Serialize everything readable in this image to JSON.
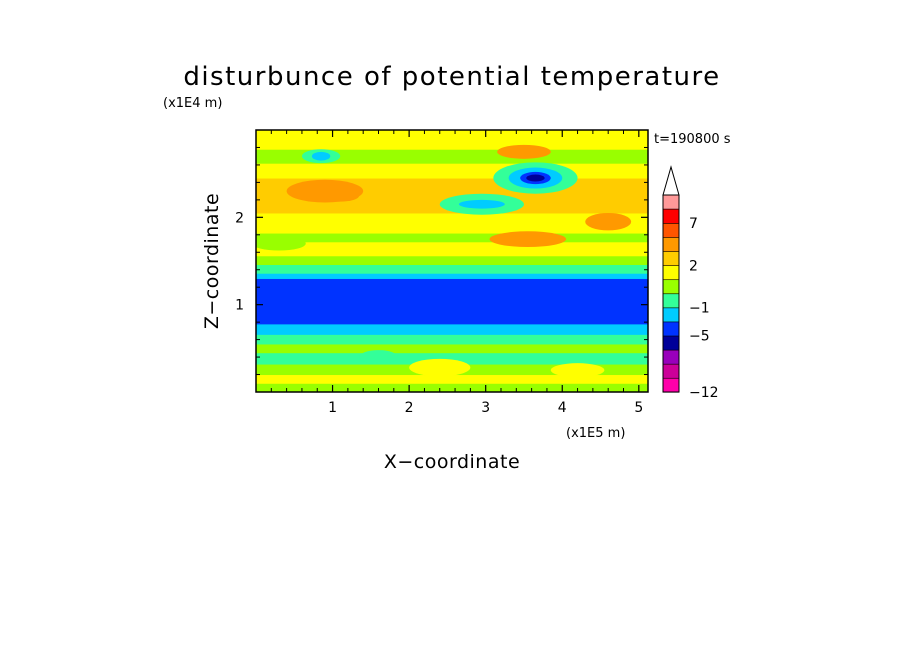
{
  "chart_data": {
    "type": "heatmap",
    "title": "disturbunce of potential temperature",
    "xlabel": "X−coordinate",
    "ylabel": "Z−coordinate",
    "x_scale_label": "(x1E5 m)",
    "y_scale_label": "(x1E4 m)",
    "time_label": "t=190800 s",
    "xlim": [
      0,
      5.12
    ],
    "ylim": [
      0,
      3.0
    ],
    "x_ticks": [
      1,
      2,
      3,
      4,
      5
    ],
    "y_ticks": [
      1,
      2
    ],
    "x_tick_labels": [
      "1",
      "2",
      "3",
      "4",
      "5"
    ],
    "y_tick_labels": [
      "1",
      "2"
    ],
    "colorbar": {
      "levels": [
        -12,
        -11,
        -9,
        -7,
        -5,
        -3,
        -1,
        0,
        1,
        2,
        3,
        5,
        7,
        9,
        11
      ],
      "colors": [
        "#ff00aa",
        "#cc0099",
        "#9900bb",
        "#000099",
        "#0033ff",
        "#00ccff",
        "#33ff99",
        "#99ff00",
        "#ffff00",
        "#ffcc00",
        "#ff9900",
        "#ff5500",
        "#ff0000",
        "#ff9999"
      ],
      "tick_values": [
        -12,
        -5,
        -1,
        2,
        7
      ],
      "tick_labels": [
        "−12",
        "−5",
        "−1",
        "2",
        "7"
      ],
      "extend": "max"
    },
    "bands": [
      {
        "z0": 0.0,
        "z1": 0.1,
        "value": 0
      },
      {
        "z0": 0.1,
        "z1": 0.2,
        "value": 1
      },
      {
        "z0": 0.2,
        "z1": 0.32,
        "value": 0
      },
      {
        "z0": 0.32,
        "z1": 0.45,
        "value": -0.5
      },
      {
        "z0": 0.45,
        "z1": 0.55,
        "value": 0
      },
      {
        "z0": 0.55,
        "z1": 0.66,
        "value": -1
      },
      {
        "z0": 0.66,
        "z1": 0.78,
        "value": -2
      },
      {
        "z0": 0.78,
        "z1": 1.3,
        "value": -4
      },
      {
        "z0": 1.3,
        "z1": 1.36,
        "value": -2
      },
      {
        "z0": 1.36,
        "z1": 1.46,
        "value": -0.5
      },
      {
        "z0": 1.46,
        "z1": 1.56,
        "value": 0.5
      },
      {
        "z0": 1.56,
        "z1": 1.72,
        "value": 1
      },
      {
        "z0": 1.72,
        "z1": 1.82,
        "value": 0
      },
      {
        "z0": 1.82,
        "z1": 1.92,
        "value": 1
      },
      {
        "z0": 1.92,
        "z1": 2.05,
        "value": 1.5
      },
      {
        "z0": 2.05,
        "z1": 2.18,
        "value": 2
      },
      {
        "z0": 2.18,
        "z1": 2.45,
        "value": 2.5
      },
      {
        "z0": 2.45,
        "z1": 2.62,
        "value": 1
      },
      {
        "z0": 2.62,
        "z1": 2.78,
        "value": 0
      },
      {
        "z0": 2.78,
        "z1": 3.0,
        "value": 1
      }
    ],
    "features": [
      {
        "x": 0.9,
        "z": 2.3,
        "rx": 0.5,
        "rz": 0.13,
        "value": 3
      },
      {
        "x": 1.1,
        "z": 2.25,
        "rx": 0.25,
        "rz": 0.07,
        "value": 4
      },
      {
        "x": 3.65,
        "z": 2.45,
        "rx": 0.55,
        "rz": 0.18,
        "value": -0.5
      },
      {
        "x": 3.65,
        "z": 2.45,
        "rx": 0.35,
        "rz": 0.12,
        "value": -2
      },
      {
        "x": 3.65,
        "z": 2.45,
        "rx": 0.2,
        "rz": 0.07,
        "value": -4
      },
      {
        "x": 3.65,
        "z": 2.45,
        "rx": 0.12,
        "rz": 0.04,
        "value": -6
      },
      {
        "x": 2.95,
        "z": 2.15,
        "rx": 0.55,
        "rz": 0.12,
        "value": -0.5
      },
      {
        "x": 2.95,
        "z": 2.15,
        "rx": 0.3,
        "rz": 0.05,
        "value": -3
      },
      {
        "x": 3.55,
        "z": 1.75,
        "rx": 0.5,
        "rz": 0.09,
        "value": 3
      },
      {
        "x": 3.55,
        "z": 1.75,
        "rx": 0.2,
        "rz": 0.05,
        "value": 4
      },
      {
        "x": 3.5,
        "z": 2.75,
        "rx": 0.35,
        "rz": 0.08,
        "value": 3
      },
      {
        "x": 4.6,
        "z": 1.95,
        "rx": 0.3,
        "rz": 0.1,
        "value": 3
      },
      {
        "x": 0.85,
        "z": 2.7,
        "rx": 0.25,
        "rz": 0.08,
        "value": -1
      },
      {
        "x": 0.85,
        "z": 2.7,
        "rx": 0.12,
        "rz": 0.05,
        "value": -3
      },
      {
        "x": 0.3,
        "z": 1.7,
        "rx": 0.35,
        "rz": 0.08,
        "value": 0
      },
      {
        "x": 2.4,
        "z": 0.28,
        "rx": 0.4,
        "rz": 0.1,
        "value": 1
      },
      {
        "x": 4.2,
        "z": 0.25,
        "rx": 0.35,
        "rz": 0.08,
        "value": 1
      },
      {
        "x": 1.6,
        "z": 0.4,
        "rx": 0.25,
        "rz": 0.08,
        "value": -1
      }
    ]
  }
}
